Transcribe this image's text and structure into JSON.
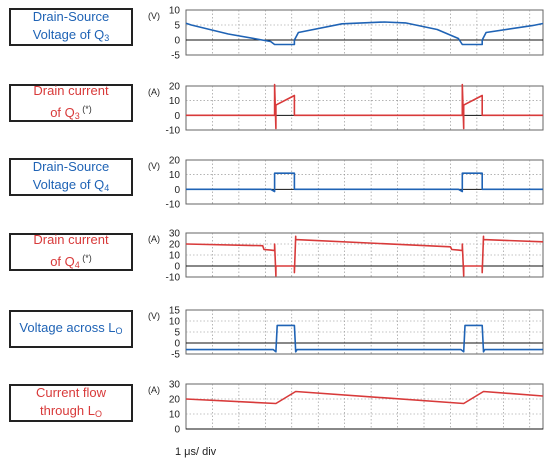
{
  "chart_data": [
    {
      "type": "line",
      "label": {
        "line1": "Drain-Source",
        "line2_text": "Voltage of Q",
        "line2_sub": "3",
        "sup": ""
      },
      "unit": "(V)",
      "color": "#1f63b5",
      "ylim": [
        -5,
        10
      ],
      "yticks": [
        -5,
        0,
        5,
        10
      ],
      "series": [
        {
          "x": [
            0,
            0.2,
            1.6,
            3.2,
            3.35,
            4.1,
            4.1,
            4.25,
            5.9,
            7.5,
            8.3,
            9.5,
            10.3,
            10.45,
            11.2,
            11.2,
            11.35,
            13.1,
            13.5
          ],
          "y": [
            5.6,
            5,
            2,
            -0.5,
            -1.5,
            -1.5,
            0,
            2.5,
            5.4,
            6,
            5.7,
            3.5,
            0.5,
            -1.5,
            -1.5,
            0,
            2.5,
            4.8,
            5.5
          ]
        }
      ]
    },
    {
      "type": "line",
      "label": {
        "line1": "Drain current",
        "line2_text": "of Q",
        "line2_sub": "3",
        "sup": "(*)"
      },
      "unit": "(A)",
      "color": "#d83a3a",
      "ylim": [
        -10,
        20
      ],
      "yticks": [
        -10,
        0,
        10,
        20
      ],
      "series": [
        {
          "x": [
            0,
            3.2,
            3.35,
            3.35,
            3.4,
            3.4,
            4.1,
            4.1,
            10.3,
            10.45,
            10.45,
            10.5,
            10.5,
            11.2,
            11.2,
            13.5
          ],
          "y": [
            0,
            0,
            0,
            21,
            -9,
            7,
            13.5,
            0,
            0,
            0,
            21,
            -9,
            7,
            13.5,
            0,
            0
          ]
        }
      ]
    },
    {
      "type": "line",
      "label": {
        "line1": "Drain-Source",
        "line2_text": "Voltage of Q",
        "line2_sub": "4",
        "sup": ""
      },
      "unit": "(V)",
      "color": "#1f63b5",
      "ylim": [
        -10,
        20
      ],
      "yticks": [
        -10,
        0,
        10,
        20
      ],
      "series": [
        {
          "x": [
            0,
            3.2,
            3.35,
            3.35,
            4.1,
            4.1,
            10.3,
            10.45,
            10.45,
            11.2,
            11.2,
            13.5
          ],
          "y": [
            0,
            0,
            -1.5,
            11,
            11,
            0,
            0,
            -1.5,
            11,
            11,
            0,
            0
          ]
        }
      ]
    },
    {
      "type": "line",
      "label": {
        "line1": "Drain current",
        "line2_text": "of Q",
        "line2_sub": "4",
        "sup": "(*)"
      },
      "unit": "(A)",
      "color": "#d83a3a",
      "ylim": [
        -10,
        30
      ],
      "yticks": [
        -10,
        0,
        10,
        20,
        30
      ],
      "series": [
        {
          "x": [
            0,
            2.9,
            2.95,
            3.2,
            3.35,
            3.35,
            3.4,
            3.4,
            4.1,
            4.1,
            4.15,
            4.15,
            10.0,
            10.05,
            10.3,
            10.45,
            10.45,
            10.5,
            10.5,
            11.2,
            11.2,
            11.25,
            11.25,
            13.5
          ],
          "y": [
            20,
            18.5,
            15,
            14.5,
            14,
            20,
            -9,
            0,
            0,
            -6,
            27,
            24,
            17.5,
            15,
            14.5,
            14,
            20,
            -9,
            0,
            0,
            -6,
            27,
            24,
            22
          ]
        }
      ]
    },
    {
      "type": "line",
      "label": {
        "line1": "Voltage across L",
        "line1_sub": "O",
        "line2_text": "",
        "line2_sub": "",
        "sup": ""
      },
      "unit": "(V)",
      "color": "#1f63b5",
      "ylim": [
        -5,
        15
      ],
      "yticks": [
        -5,
        0,
        5,
        10,
        15
      ],
      "series": [
        {
          "x": [
            0,
            3.3,
            3.4,
            3.45,
            4.1,
            4.15,
            4.2,
            10.4,
            10.5,
            10.55,
            11.2,
            11.25,
            11.3,
            13.5
          ],
          "y": [
            -3,
            -3,
            -4,
            8,
            8,
            -4,
            -3,
            -3,
            -4,
            8,
            8,
            -4,
            -3,
            -3
          ]
        }
      ]
    },
    {
      "type": "line",
      "label": {
        "line1": "Current flow",
        "line2_text": "through L",
        "line2_sub": "O",
        "sup": ""
      },
      "unit": "(A)",
      "color": "#d83a3a",
      "ylim": [
        0,
        30
      ],
      "yticks": [
        0,
        10,
        20,
        30
      ],
      "series": [
        {
          "x": [
            0,
            3.4,
            4.15,
            10.5,
            11.25,
            13.5
          ],
          "y": [
            20,
            17,
            25,
            17,
            25,
            22
          ]
        }
      ]
    }
  ],
  "xaxis": {
    "xlim": [
      0,
      13.5
    ],
    "footer": "1 μs/ div"
  }
}
